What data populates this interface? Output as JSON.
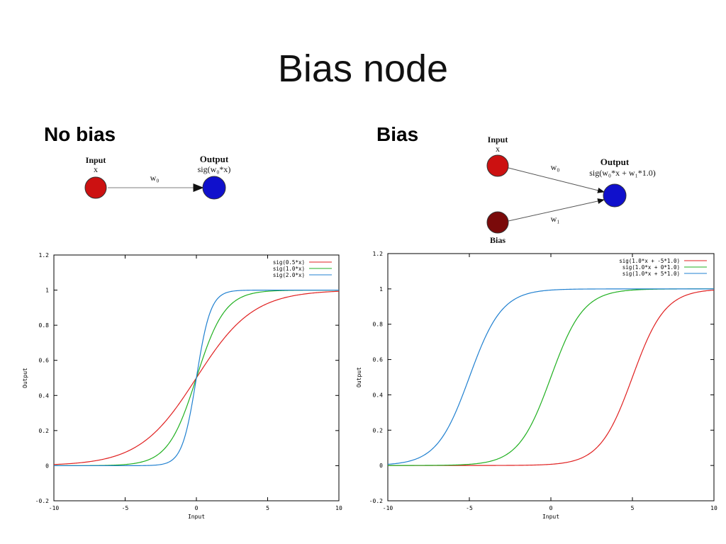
{
  "slide": {
    "title": "Bias node"
  },
  "sections": {
    "no_bias_label": "No bias",
    "bias_label": "Bias"
  },
  "diagram_no_bias": {
    "input_title": "Input",
    "input_var": "x",
    "output_title": "Output",
    "output_formula": "sig(w₀*x)",
    "weight": "w₀",
    "colors": {
      "input": "#cc1111",
      "output": "#1010cc"
    }
  },
  "diagram_bias": {
    "input_title": "Input",
    "input_var": "x",
    "output_title": "Output",
    "output_formula": "sig(w₀*x + w₁*1.0)",
    "weight_0": "w₀",
    "weight_1": "w₁",
    "bias_title": "Bias",
    "colors": {
      "input": "#cc1111",
      "bias": "#7a0a0a",
      "output": "#1010cc"
    }
  },
  "chart_data": [
    {
      "type": "line",
      "function": "sigmoid",
      "xlabel": "Input",
      "ylabel": "Output",
      "xlim": [
        -10,
        10
      ],
      "ylim": [
        -0.2,
        1.2
      ],
      "xticks": [
        -10,
        -5,
        0,
        5,
        10
      ],
      "yticks": [
        -0.2,
        0,
        0.2,
        0.4,
        0.6,
        0.8,
        1,
        1.2
      ],
      "xtick_labels": [
        "-10",
        "-5",
        "0",
        "5",
        "10"
      ],
      "ytick_labels": [
        "-0.2",
        "0",
        "0.2",
        "0.4",
        "0.6",
        "0.8",
        "1",
        "1.2"
      ],
      "legend_position": "top-right",
      "grid": false,
      "series": [
        {
          "name": "sig(0.5*x)",
          "w": 0.5,
          "b": 0,
          "color": "#e02020"
        },
        {
          "name": "sig(1.0*x)",
          "w": 1.0,
          "b": 0,
          "color": "#20b020"
        },
        {
          "name": "sig(2.0*x)",
          "w": 2.0,
          "b": 0,
          "color": "#2080d0"
        }
      ]
    },
    {
      "type": "line",
      "function": "sigmoid",
      "xlabel": "Input",
      "ylabel": "Output",
      "xlim": [
        -10,
        10
      ],
      "ylim": [
        -0.2,
        1.2
      ],
      "xticks": [
        -10,
        -5,
        0,
        5,
        10
      ],
      "yticks": [
        -0.2,
        0,
        0.2,
        0.4,
        0.6,
        0.8,
        1,
        1.2
      ],
      "xtick_labels": [
        "-10",
        "-5",
        "0",
        "5",
        "10"
      ],
      "ytick_labels": [
        "-0.2",
        "0",
        "0.2",
        "0.4",
        "0.6",
        "0.8",
        "1",
        "1.2"
      ],
      "legend_position": "top-right",
      "grid": false,
      "series": [
        {
          "name": "sig(1.0*x + -5*1.0)",
          "w": 1.0,
          "b": -5,
          "color": "#e02020"
        },
        {
          "name": "sig(1.0*x +  0*1.0)",
          "w": 1.0,
          "b": 0,
          "color": "#20b020"
        },
        {
          "name": "sig(1.0*x +  5*1.0)",
          "w": 1.0,
          "b": 5,
          "color": "#2080d0"
        }
      ]
    }
  ]
}
